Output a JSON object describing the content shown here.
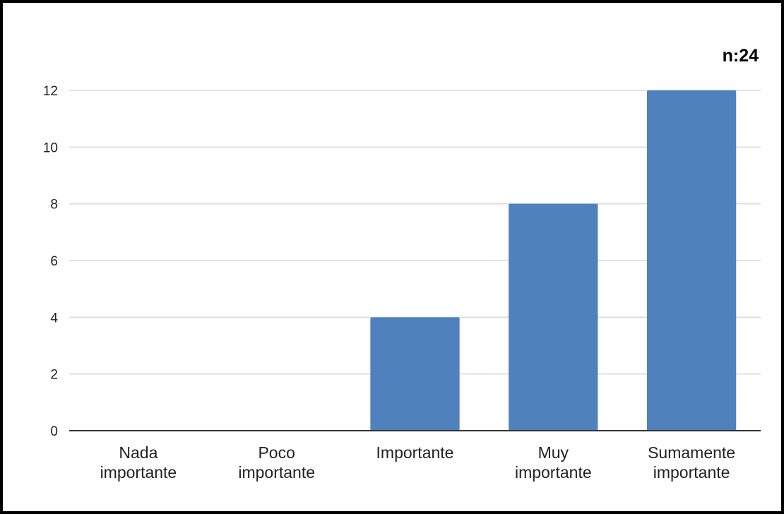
{
  "annotation": "n:24",
  "colors": {
    "bar": "#4f81bd",
    "grid": "#d9d9d9",
    "axis": "#333333",
    "frame": "#000000"
  },
  "chart_data": {
    "type": "bar",
    "title": "",
    "xlabel": "",
    "ylabel": "",
    "categories": [
      [
        "Nada",
        "importante"
      ],
      [
        "Poco",
        "importante"
      ],
      [
        "Importante"
      ],
      [
        "Muy",
        "importante"
      ],
      [
        "Sumamente",
        "importante"
      ]
    ],
    "values": [
      0,
      0,
      4,
      8,
      12
    ],
    "ylim": [
      0,
      12
    ],
    "yticks": [
      0,
      2,
      4,
      6,
      8,
      10,
      12
    ],
    "grid": true,
    "legend": "none",
    "annotations": [
      "n:24"
    ]
  }
}
